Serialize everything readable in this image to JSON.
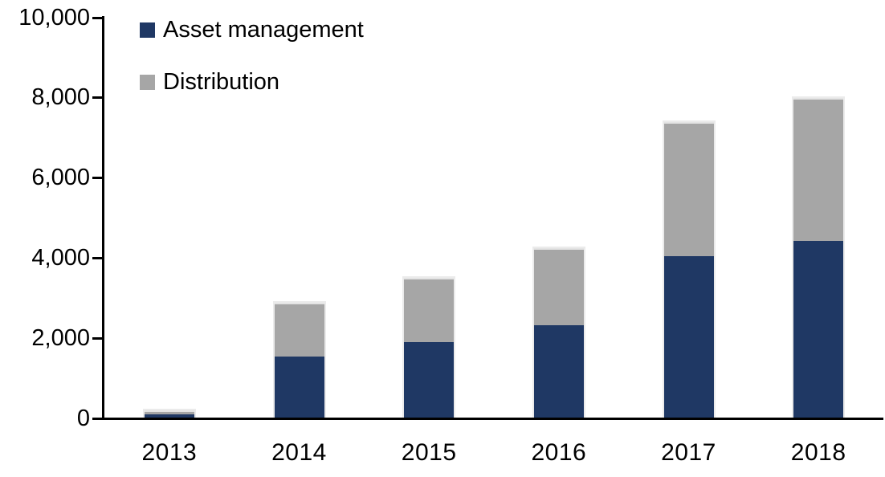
{
  "chart_data": {
    "type": "bar",
    "stacked": true,
    "title": "",
    "xlabel": "",
    "ylabel": "",
    "categories": [
      "2013",
      "2014",
      "2015",
      "2016",
      "2017",
      "2018"
    ],
    "series": [
      {
        "name": "Asset management",
        "color": "#1f3864",
        "values": [
          100,
          1550,
          1900,
          2320,
          4050,
          4430
        ]
      },
      {
        "name": "Distribution",
        "color": "#a6a6a6",
        "values": [
          100,
          1330,
          1600,
          1930,
          3350,
          3570
        ]
      }
    ],
    "stack_totals": [
      200,
      2880,
      3500,
      4250,
      7400,
      8000
    ],
    "ylim": [
      0,
      10000
    ],
    "y_ticks": [
      {
        "value": 10000,
        "label": "10,000"
      },
      {
        "value": 8000,
        "label": "8,000"
      },
      {
        "value": 6000,
        "label": "6,000"
      },
      {
        "value": 4000,
        "label": "4,000"
      },
      {
        "value": 2000,
        "label": "2,000"
      },
      {
        "value": 0,
        "label": "0"
      }
    ],
    "grid": false,
    "legend_position": "top-left"
  },
  "legend": {
    "items": [
      {
        "label": "Asset management",
        "color": "#1f3864"
      },
      {
        "label": "Distribution",
        "color": "#a6a6a6"
      }
    ]
  },
  "axis": {
    "line_color": "#000000",
    "text_color": "#000000"
  }
}
